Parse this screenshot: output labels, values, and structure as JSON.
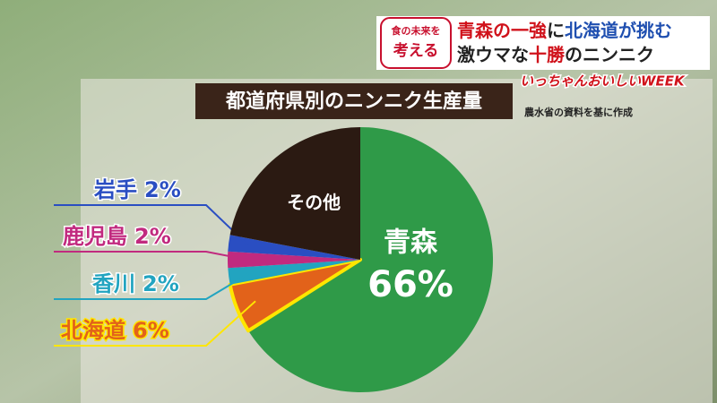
{
  "header": {
    "logo": [
      "食の未来を",
      "考える"
    ],
    "headline": [
      "青森の一強",
      "に",
      "北海道が挑む"
    ],
    "subheadline": [
      "激ウマな",
      "十勝",
      "のニンニク"
    ],
    "corner": "いっちゃんおいしいWEEK"
  },
  "chart_data": {
    "type": "pie",
    "title": "都道府県別のニンニク生産量",
    "note": "農水省の資料を基に作成",
    "categories": [
      "青森",
      "北海道",
      "香川",
      "鹿児島",
      "岩手",
      "その他"
    ],
    "values": [
      66,
      6,
      2,
      2,
      2,
      22
    ],
    "value_labels": [
      "66%",
      "6%",
      "2%",
      "2%",
      "2%",
      null
    ],
    "colors": [
      "#2f9a48",
      "#e2621a",
      "#22a4c0",
      "#c12a7f",
      "#2a4ec2",
      "#2b1a12"
    ]
  }
}
